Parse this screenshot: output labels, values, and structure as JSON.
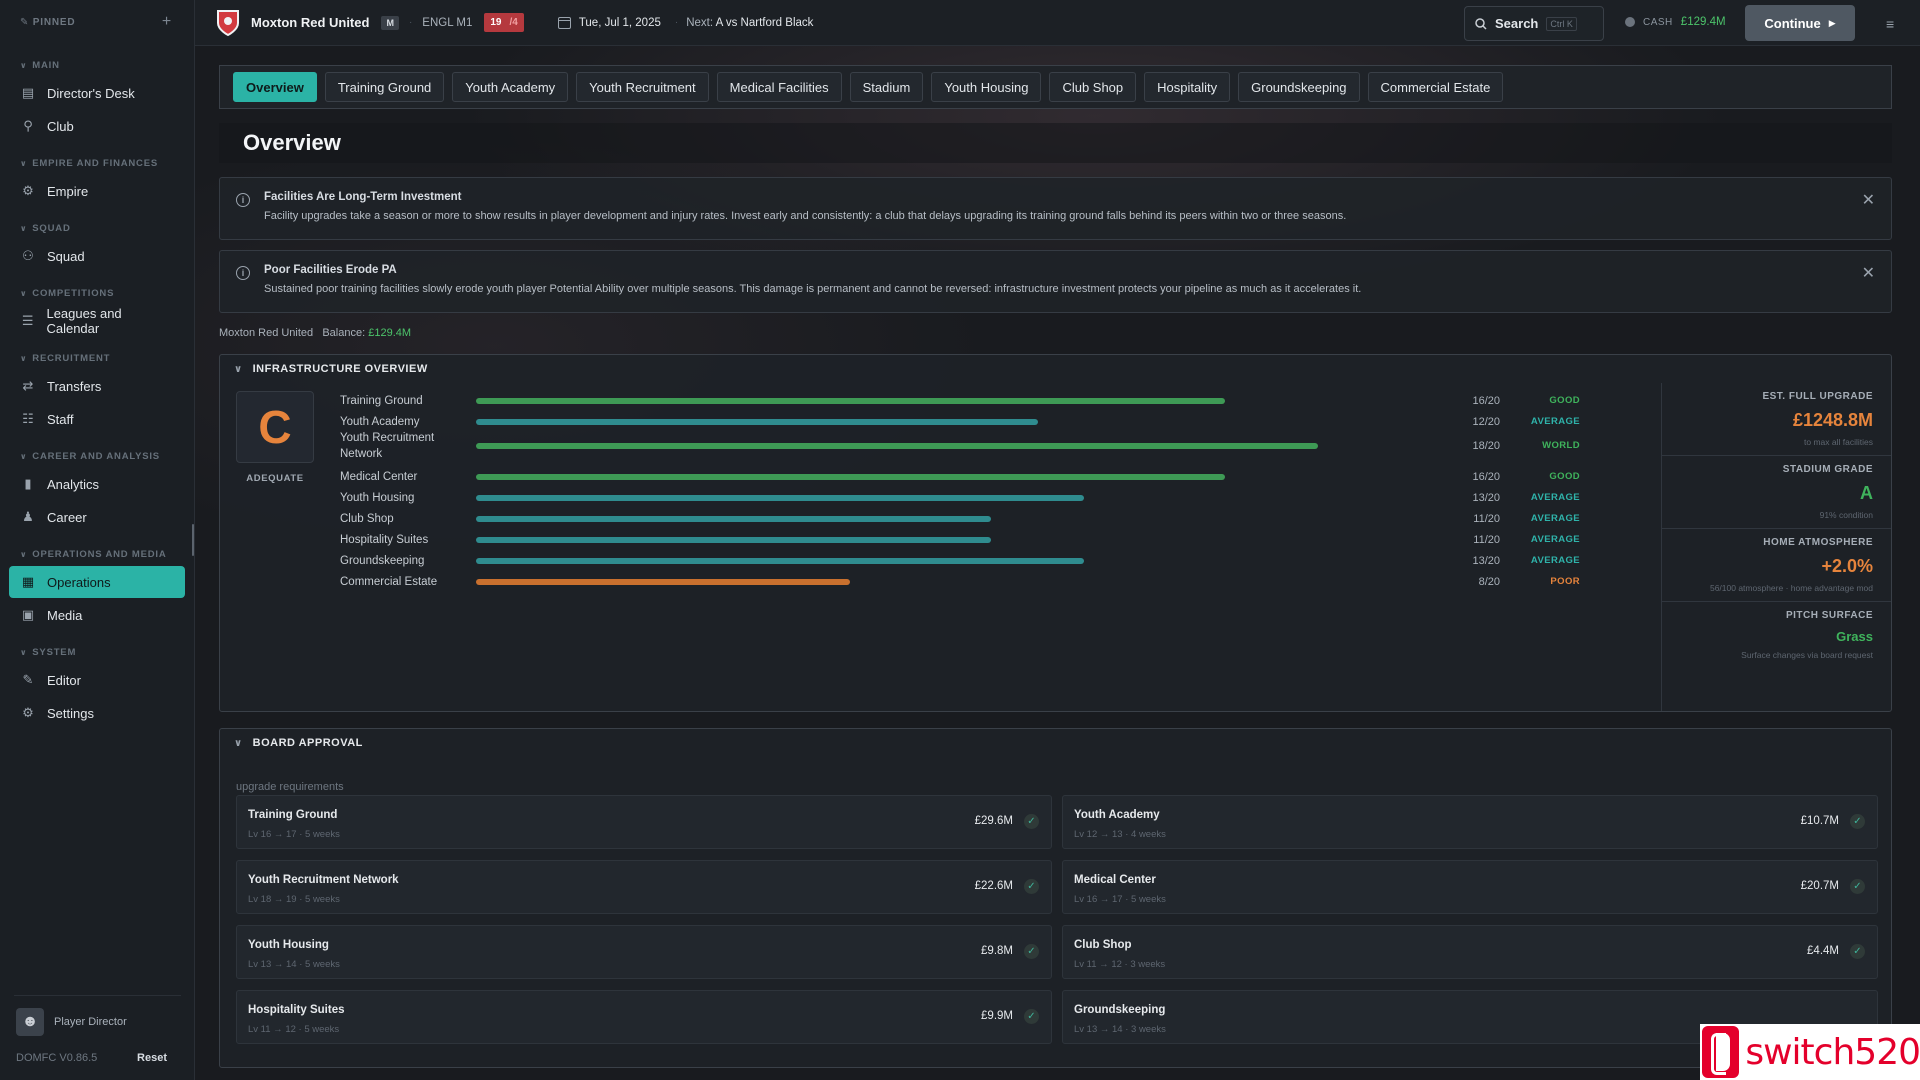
{
  "sidebar": {
    "pinned_label": "PINNED",
    "sections": [
      {
        "title": "MAIN",
        "items": [
          {
            "label": "Director's Desk",
            "icon": "clipboard-icon"
          },
          {
            "label": "Club",
            "icon": "pin-icon"
          }
        ]
      },
      {
        "title": "EMPIRE AND FINANCES",
        "items": [
          {
            "label": "Empire",
            "icon": "gear-icon"
          }
        ]
      },
      {
        "title": "SQUAD",
        "items": [
          {
            "label": "Squad",
            "icon": "people-icon"
          }
        ]
      },
      {
        "title": "COMPETITIONS",
        "items": [
          {
            "label": "Leagues and Calendar",
            "icon": "list-icon"
          }
        ]
      },
      {
        "title": "RECRUITMENT",
        "items": [
          {
            "label": "Transfers",
            "icon": "swap-icon"
          },
          {
            "label": "Staff",
            "icon": "staff-icon"
          }
        ]
      },
      {
        "title": "CAREER AND ANALYSIS",
        "items": [
          {
            "label": "Analytics",
            "icon": "bar-chart-icon"
          },
          {
            "label": "Career",
            "icon": "person-icon"
          }
        ]
      },
      {
        "title": "OPERATIONS AND MEDIA",
        "items": [
          {
            "label": "Operations",
            "icon": "building-icon",
            "active": true
          },
          {
            "label": "Media",
            "icon": "media-icon"
          }
        ]
      },
      {
        "title": "SYSTEM",
        "items": [
          {
            "label": "Editor",
            "icon": "pencil-icon"
          },
          {
            "label": "Settings",
            "icon": "settings-icon"
          }
        ]
      }
    ],
    "profile_name": "Player Director",
    "version": "DOMFC V0.86.5",
    "reset_label": "Reset"
  },
  "topbar": {
    "club_name": "Moxton Red United",
    "tier_badge": "M",
    "league": "ENGL M1",
    "position": "19",
    "position_of": "/4",
    "date": "Tue, Jul 1, 2025",
    "next_label": "Next:",
    "next_value": "A  vs Nartford Black",
    "search_label": "Search",
    "search_shortcut": "Ctrl K",
    "cash_label": "CASH",
    "cash_value": "£129.4M",
    "continue_label": "Continue"
  },
  "tabs": [
    "Overview",
    "Training Ground",
    "Youth Academy",
    "Youth Recruitment",
    "Medical Facilities",
    "Stadium",
    "Youth Housing",
    "Club Shop",
    "Hospitality",
    "Groundskeeping",
    "Commercial Estate"
  ],
  "active_tab": 0,
  "page_title": "Overview",
  "alerts": [
    {
      "title": "Facilities Are Long-Term Investment",
      "body": "Facility upgrades take a season or more to show results in player development and injury rates. Invest early and consistently: a club that delays upgrading its training ground falls behind its peers within two or three seasons."
    },
    {
      "title": "Poor Facilities Erode PA",
      "body": "Sustained poor training facilities slowly erode youth player Potential Ability over multiple seasons. This damage is permanent and cannot be reversed: infrastructure investment protects your pipeline as much as it accelerates it."
    }
  ],
  "balance": {
    "club": "Moxton Red United",
    "label": "Balance:",
    "value": "£129.4M"
  },
  "infrastructure": {
    "title": "INFRASTRUCTURE OVERVIEW",
    "overall_grade": "C",
    "overall_label": "ADEQUATE",
    "max_level": 20,
    "facilities": [
      {
        "name": "Training Ground",
        "level": 16,
        "display": "16/20",
        "rating": "GOOD",
        "color": "#3e9a55"
      },
      {
        "name": "Youth Academy",
        "level": 12,
        "display": "12/20",
        "rating": "AVERAGE",
        "color": "#2f8c8f"
      },
      {
        "name": "Youth Recruitment Network",
        "level": 18,
        "display": "18/20",
        "rating": "WORLD",
        "color": "#3e9a55"
      },
      {
        "name": "Medical Center",
        "level": 16,
        "display": "16/20",
        "rating": "GOOD",
        "color": "#3e9a55"
      },
      {
        "name": "Youth Housing",
        "level": 13,
        "display": "13/20",
        "rating": "AVERAGE",
        "color": "#2f8c8f"
      },
      {
        "name": "Club Shop",
        "level": 11,
        "display": "11/20",
        "rating": "AVERAGE",
        "color": "#2f8c8f"
      },
      {
        "name": "Hospitality Suites",
        "level": 11,
        "display": "11/20",
        "rating": "AVERAGE",
        "color": "#2f8c8f"
      },
      {
        "name": "Groundskeeping",
        "level": 13,
        "display": "13/20",
        "rating": "AVERAGE",
        "color": "#2f8c8f"
      },
      {
        "name": "Commercial Estate",
        "level": 8,
        "display": "8/20",
        "rating": "POOR",
        "color": "#c8702e"
      }
    ],
    "rating_colors": {
      "GOOD": "#3fb35c",
      "AVERAGE": "#2fb3aa",
      "WORLD": "#3fb35c",
      "POOR": "#e6843c"
    },
    "stats": [
      {
        "label": "EST. FULL UPGRADE",
        "value": "£1248.8M",
        "sub": "to max all facilities",
        "color": "#e6843c"
      },
      {
        "label": "STADIUM GRADE",
        "value": "A",
        "sub": "91% condition",
        "color": "#3fb35c"
      },
      {
        "label": "HOME ATMOSPHERE",
        "value": "+2.0%",
        "sub": "56/100 atmosphere · home advantage mod",
        "color": "#e6843c"
      },
      {
        "label": "PITCH SURFACE",
        "value": "Grass",
        "sub": "Surface changes via board request",
        "color": "#3fb35c"
      }
    ]
  },
  "board": {
    "title": "BOARD APPROVAL",
    "sub_label": "upgrade requirements",
    "requests": [
      {
        "name": "Training Ground",
        "meta": "Lv 16 → 17 · 5 weeks",
        "cost": "£29.6M"
      },
      {
        "name": "Youth Academy",
        "meta": "Lv 12 → 13 · 4 weeks",
        "cost": "£10.7M"
      },
      {
        "name": "Youth Recruitment Network",
        "meta": "Lv 18 → 19 · 5 weeks",
        "cost": "£22.6M"
      },
      {
        "name": "Medical Center",
        "meta": "Lv 16 → 17 · 5 weeks",
        "cost": "£20.7M"
      },
      {
        "name": "Youth Housing",
        "meta": "Lv 13 → 14 · 5 weeks",
        "cost": "£9.8M"
      },
      {
        "name": "Club Shop",
        "meta": "Lv 11 → 12 · 3 weeks",
        "cost": "£4.4M"
      },
      {
        "name": "Hospitality Suites",
        "meta": "Lv 11 → 12 · 5 weeks",
        "cost": "£9.9M"
      },
      {
        "name": "Groundskeeping",
        "meta": "Lv 13 → 14 · 3 weeks",
        "cost": ""
      }
    ]
  },
  "watermark": {
    "text": "switch520"
  }
}
